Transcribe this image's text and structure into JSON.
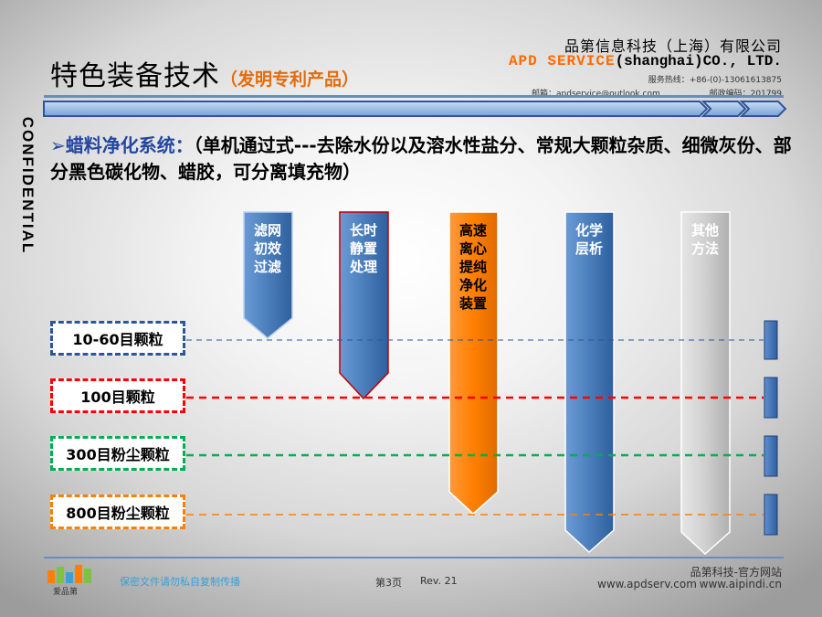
{
  "header": {
    "title": "特色装备技术",
    "title_sub": "（发明专利产品）",
    "company_cn": "品第信息科技（上海）有限公司",
    "company_en_brand": "APD SERVICE",
    "company_en_rest": "(shanghai)CO., LTD.",
    "phone": "服务热线：+86-(0)-13061613875",
    "email": "邮箱：apdservice@outlook.com",
    "zip": "邮政编码：201799"
  },
  "confidential": "CONFIDENTIAL",
  "heading": {
    "lead": "➢蜡料净化系统：",
    "text": "（单机通过式---去除水份以及溶水性盐分、常规大颗粒杂质、细微灰份、部分黑色碳化物、蜡胶，可分离填充物）"
  },
  "rows": [
    {
      "label": "10-60目颗粒",
      "color": "#2f5597"
    },
    {
      "label": "100目颗粒",
      "color": "#ff0000"
    },
    {
      "label": "300目粉尘颗粒",
      "color": "#00b050"
    },
    {
      "label": "800目粉尘颗粒",
      "color": "#ff7f00"
    }
  ],
  "columns": [
    {
      "text": "滤网初效过滤",
      "color": "#4a7ebb"
    },
    {
      "text": "长时静置处理",
      "color": "#4a7ebb"
    },
    {
      "text": "高速离心提纯净化装置",
      "color": "#ff7f00"
    },
    {
      "text": "化学层析",
      "color": "#4a7ebb"
    },
    {
      "text": "其他方法",
      "color": "#d0d0d0"
    }
  ],
  "footer": {
    "secret": "保密文件请勿私自复制传播",
    "page": "第3页",
    "rev": "Rev. 21",
    "site_title": "品第科技-官方网站",
    "site1": "www.apdserv.com",
    "site2": "www.aipindi.cn",
    "logo_text": "爱品第"
  }
}
